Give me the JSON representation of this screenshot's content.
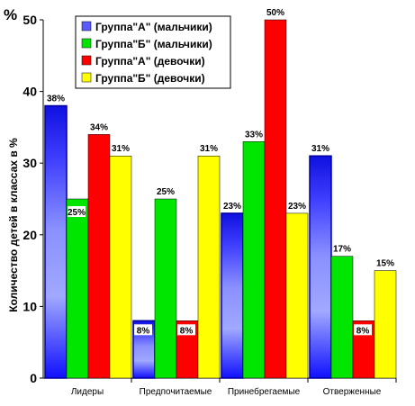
{
  "chart_data": {
    "type": "bar",
    "title": "",
    "ylabel": "Количество детей в классах в %",
    "yunit": "%",
    "ylim": [
      0,
      50
    ],
    "yticks": [
      0,
      10,
      20,
      30,
      40,
      50
    ],
    "categories": [
      "Лидеры",
      "Предпочитаемые",
      "Принебрегаемые",
      "Отверженные"
    ],
    "series": [
      {
        "name": "Группа\"А\" (мальчики)",
        "values": [
          38,
          8,
          23,
          31
        ],
        "labels": [
          "38%",
          "8%",
          "23%",
          "31%"
        ],
        "color": "#3b3bff"
      },
      {
        "name": "Группа\"Б\" (мальчики)",
        "values": [
          25,
          25,
          33,
          17
        ],
        "labels": [
          "25%",
          "25%",
          "33%",
          "17%"
        ],
        "color": "#00e600"
      },
      {
        "name": "Группа\"А\" (девочки)",
        "values": [
          34,
          8,
          50,
          8
        ],
        "labels": [
          "34%",
          "8%",
          "50%",
          "8%"
        ],
        "color": "#ff0000"
      },
      {
        "name": "Группа\"Б\" (девочки)",
        "values": [
          31,
          31,
          23,
          15
        ],
        "labels": [
          "31%",
          "31%",
          "23%",
          "15%"
        ],
        "color": "#ffff00"
      }
    ],
    "legend_position": "top-center",
    "grid": false
  }
}
